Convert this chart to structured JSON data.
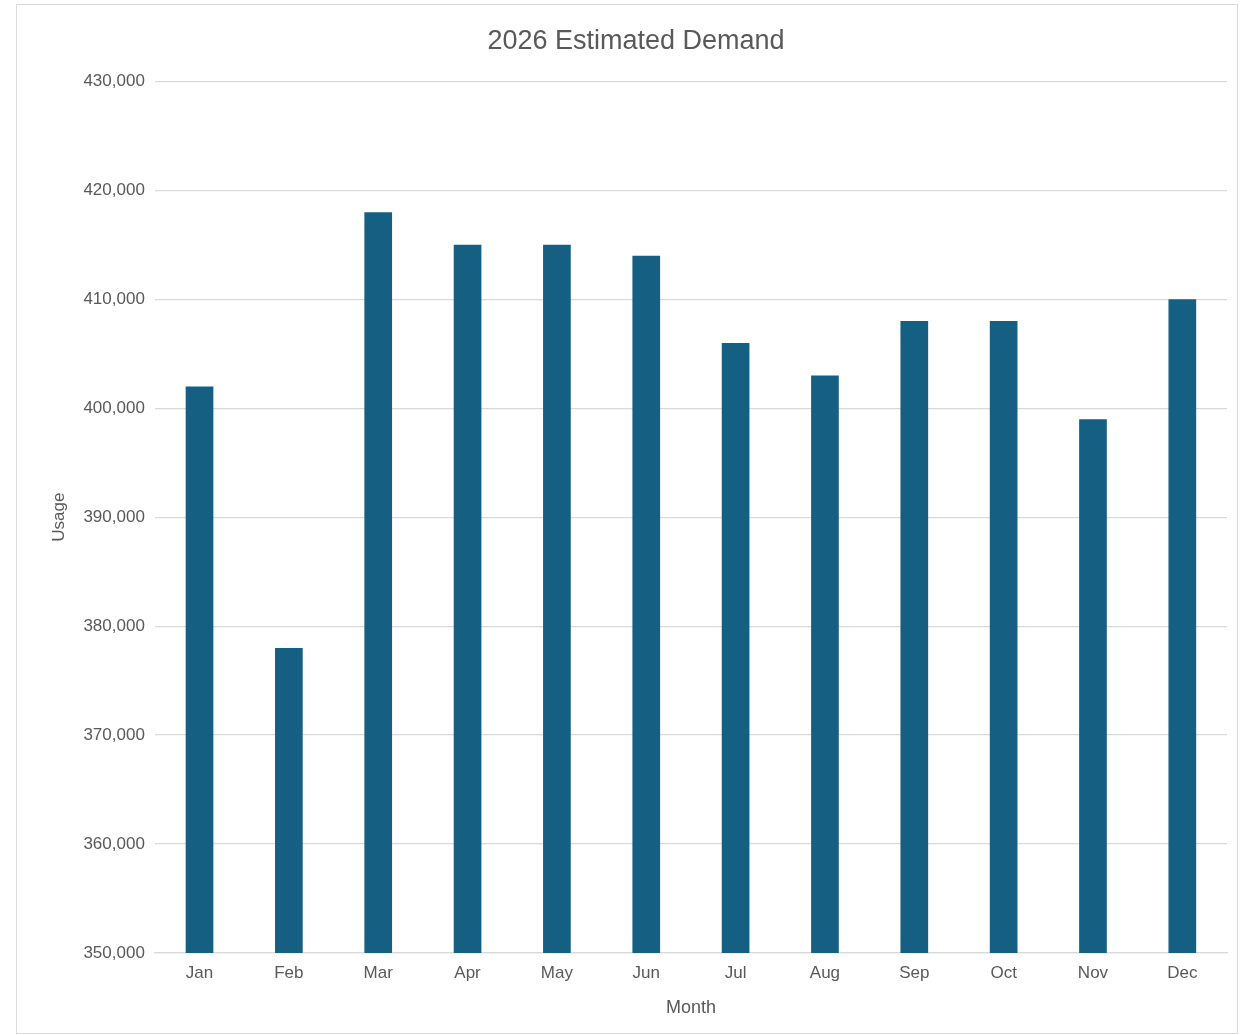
{
  "chart_data": {
    "type": "bar",
    "title": "2026 Estimated Demand",
    "xlabel": "Month",
    "ylabel": "Usage",
    "categories": [
      "Jan",
      "Feb",
      "Mar",
      "Apr",
      "May",
      "Jun",
      "Jul",
      "Aug",
      "Sep",
      "Oct",
      "Nov",
      "Dec"
    ],
    "values": [
      402000,
      378000,
      418000,
      415000,
      415000,
      414000,
      406000,
      403000,
      408000,
      408000,
      399000,
      410000
    ],
    "color": "#156082",
    "ylim": [
      350000,
      430000
    ],
    "yticks": [
      {
        "value": 350000,
        "label": "350,000"
      },
      {
        "value": 360000,
        "label": "360,000"
      },
      {
        "value": 370000,
        "label": "370,000"
      },
      {
        "value": 380000,
        "label": "380,000"
      },
      {
        "value": 390000,
        "label": "390,000"
      },
      {
        "value": 400000,
        "label": "400,000"
      },
      {
        "value": 410000,
        "label": "410,000"
      },
      {
        "value": 420000,
        "label": "420,000"
      },
      {
        "value": 430000,
        "label": "430,000"
      }
    ],
    "grid": "y",
    "legend": false
  }
}
